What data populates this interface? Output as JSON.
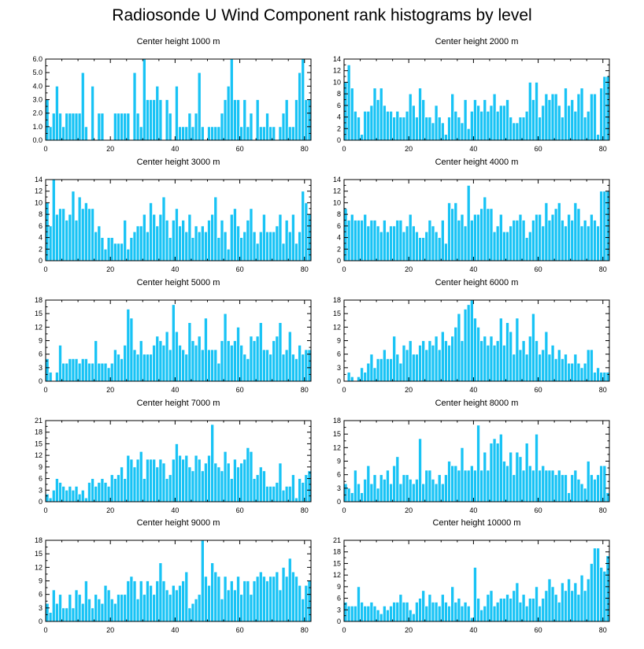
{
  "page_title": "Radiosonde U Wind Component rank histograms by level",
  "colors": {
    "bar": "#18C3F5",
    "bar_edge": "#ffffff",
    "axis": "#000000"
  },
  "chart_data": [
    {
      "type": "bar",
      "title": "Center height 1000 m",
      "xlim": [
        0,
        82
      ],
      "ylim": [
        0,
        6
      ],
      "xticks": [
        0,
        20,
        40,
        60,
        80
      ],
      "yticks": [
        0,
        1,
        2,
        3,
        4,
        5,
        6
      ],
      "ytick_labels": [
        "0.0",
        "1.0",
        "2.0",
        "3.0",
        "4.0",
        "5.0",
        "6.0"
      ],
      "values": [
        3,
        1,
        2,
        4,
        2,
        1,
        2,
        2,
        2,
        2,
        2,
        5,
        1,
        0,
        4,
        0,
        2,
        2,
        0,
        0,
        0,
        2,
        2,
        2,
        2,
        2,
        0,
        5,
        2,
        1,
        6,
        3,
        3,
        3,
        4,
        3,
        0,
        3,
        2,
        0,
        4,
        1,
        1,
        1,
        2,
        1,
        2,
        5,
        1,
        0,
        1,
        1,
        1,
        1,
        2,
        3,
        4,
        6,
        3,
        3,
        1,
        3,
        1,
        2,
        0,
        3,
        1,
        1,
        2,
        1,
        1,
        0,
        1,
        2,
        3,
        1,
        1,
        3,
        5,
        6,
        3,
        3
      ]
    },
    {
      "type": "bar",
      "title": "Center height 2000 m",
      "xlim": [
        0,
        82
      ],
      "ylim": [
        0,
        14
      ],
      "xticks": [
        0,
        20,
        40,
        60,
        80
      ],
      "yticks": [
        0,
        2,
        4,
        6,
        8,
        10,
        12,
        14
      ],
      "values": [
        10,
        13,
        9,
        5,
        4,
        1,
        5,
        5,
        6,
        9,
        7,
        9,
        6,
        5,
        5,
        4,
        5,
        4,
        4,
        5,
        8,
        6,
        4,
        9,
        7,
        4,
        4,
        3,
        6,
        4,
        3,
        1,
        4,
        8,
        5,
        4,
        3,
        7,
        2,
        5,
        7,
        6,
        5,
        7,
        5,
        6,
        8,
        5,
        6,
        6,
        7,
        4,
        3,
        3,
        4,
        4,
        5,
        10,
        7,
        10,
        4,
        6,
        8,
        7,
        8,
        8,
        6,
        4,
        9,
        6,
        7,
        5,
        8,
        9,
        4,
        5,
        8,
        8,
        1,
        9,
        11,
        11
      ]
    },
    {
      "type": "bar",
      "title": "Center height 3000 m",
      "xlim": [
        0,
        82
      ],
      "ylim": [
        0,
        14
      ],
      "xticks": [
        0,
        20,
        40,
        60,
        80
      ],
      "yticks": [
        0,
        2,
        4,
        6,
        8,
        10,
        12,
        14
      ],
      "values": [
        10,
        6,
        14,
        8,
        9,
        9,
        7,
        8,
        12,
        7,
        11,
        9,
        10,
        9,
        9,
        5,
        6,
        4,
        2,
        4,
        4,
        3,
        3,
        3,
        7,
        2,
        4,
        5,
        6,
        6,
        8,
        5,
        10,
        8,
        6,
        8,
        11,
        7,
        4,
        7,
        9,
        6,
        7,
        5,
        8,
        4,
        6,
        5,
        6,
        5,
        7,
        8,
        11,
        4,
        7,
        5,
        2,
        8,
        9,
        6,
        4,
        5,
        7,
        9,
        5,
        3,
        5,
        8,
        5,
        5,
        5,
        6,
        8,
        3,
        7,
        5,
        8,
        3,
        5,
        12,
        10,
        8
      ]
    },
    {
      "type": "bar",
      "title": "Center height 4000 m",
      "xlim": [
        0,
        82
      ],
      "ylim": [
        0,
        14
      ],
      "xticks": [
        0,
        20,
        40,
        60,
        80
      ],
      "yticks": [
        0,
        2,
        4,
        6,
        8,
        10,
        12,
        14
      ],
      "values": [
        9,
        7,
        8,
        7,
        7,
        7,
        8,
        6,
        7,
        7,
        6,
        5,
        7,
        5,
        6,
        6,
        7,
        7,
        5,
        6,
        8,
        6,
        5,
        4,
        4,
        5,
        7,
        6,
        5,
        4,
        7,
        3,
        10,
        9,
        10,
        7,
        8,
        6,
        13,
        7,
        8,
        8,
        9,
        11,
        9,
        9,
        5,
        6,
        8,
        5,
        5,
        6,
        7,
        7,
        8,
        7,
        4,
        5,
        7,
        8,
        8,
        6,
        10,
        7,
        8,
        9,
        10,
        7,
        6,
        8,
        7,
        10,
        9,
        6,
        7,
        6,
        8,
        7,
        6,
        12,
        12,
        12
      ]
    },
    {
      "type": "bar",
      "title": "Center height 5000 m",
      "xlim": [
        0,
        82
      ],
      "ylim": [
        0,
        18
      ],
      "xticks": [
        0,
        20,
        40,
        60,
        80
      ],
      "yticks": [
        0,
        3,
        6,
        9,
        12,
        15,
        18
      ],
      "values": [
        5,
        2,
        0,
        2,
        8,
        4,
        4,
        5,
        5,
        5,
        4,
        5,
        5,
        4,
        4,
        9,
        4,
        4,
        4,
        3,
        4,
        7,
        6,
        5,
        8,
        16,
        14,
        7,
        6,
        9,
        6,
        6,
        6,
        8,
        10,
        9,
        8,
        11,
        7,
        17,
        11,
        8,
        7,
        6,
        13,
        9,
        8,
        10,
        7,
        14,
        7,
        7,
        7,
        4,
        9,
        15,
        9,
        8,
        9,
        12,
        8,
        6,
        5,
        10,
        9,
        10,
        13,
        7,
        7,
        6,
        9,
        10,
        13,
        6,
        7,
        11,
        6,
        5,
        8,
        6,
        7,
        7
      ]
    },
    {
      "type": "bar",
      "title": "Center height 6000 m",
      "xlim": [
        0,
        82
      ],
      "ylim": [
        0,
        18
      ],
      "xticks": [
        0,
        20,
        40,
        60,
        80
      ],
      "yticks": [
        0,
        3,
        6,
        9,
        12,
        15,
        18
      ],
      "values": [
        0,
        2,
        1,
        0,
        1,
        3,
        2,
        4,
        6,
        3,
        5,
        5,
        7,
        5,
        5,
        10,
        6,
        4,
        8,
        7,
        9,
        6,
        6,
        8,
        9,
        7,
        9,
        8,
        10,
        7,
        11,
        9,
        8,
        10,
        12,
        15,
        9,
        16,
        17,
        18,
        14,
        12,
        9,
        10,
        8,
        10,
        8,
        9,
        14,
        8,
        13,
        11,
        6,
        14,
        7,
        9,
        6,
        10,
        15,
        9,
        6,
        7,
        11,
        6,
        8,
        5,
        7,
        5,
        6,
        4,
        4,
        6,
        4,
        3,
        4,
        7,
        7,
        2,
        3,
        2,
        2,
        2
      ]
    },
    {
      "type": "bar",
      "title": "Center height 7000 m",
      "xlim": [
        0,
        82
      ],
      "ylim": [
        0,
        21
      ],
      "xticks": [
        0,
        20,
        40,
        60,
        80
      ],
      "yticks": [
        0,
        3,
        6,
        9,
        12,
        15,
        18,
        21
      ],
      "values": [
        2,
        1,
        3,
        6,
        5,
        4,
        3,
        4,
        3,
        4,
        2,
        3,
        1,
        5,
        6,
        4,
        5,
        6,
        5,
        4,
        7,
        6,
        7,
        9,
        6,
        12,
        11,
        9,
        11,
        13,
        6,
        11,
        11,
        11,
        9,
        11,
        10,
        6,
        7,
        11,
        15,
        12,
        11,
        12,
        9,
        8,
        12,
        11,
        8,
        10,
        12,
        20,
        10,
        9,
        8,
        13,
        10,
        6,
        11,
        9,
        10,
        11,
        14,
        13,
        6,
        7,
        9,
        8,
        4,
        4,
        4,
        5,
        10,
        3,
        4,
        4,
        7,
        1,
        6,
        5,
        7,
        8
      ]
    },
    {
      "type": "bar",
      "title": "Center height 8000 m",
      "xlim": [
        0,
        82
      ],
      "ylim": [
        0,
        18
      ],
      "xticks": [
        0,
        20,
        40,
        60,
        80
      ],
      "yticks": [
        0,
        3,
        6,
        9,
        12,
        15,
        18
      ],
      "values": [
        4,
        3,
        2,
        7,
        4,
        2,
        5,
        8,
        4,
        6,
        3,
        6,
        5,
        7,
        4,
        8,
        10,
        4,
        6,
        6,
        5,
        4,
        5,
        14,
        4,
        7,
        7,
        5,
        4,
        6,
        4,
        6,
        9,
        8,
        8,
        7,
        12,
        7,
        7,
        8,
        7,
        17,
        7,
        11,
        7,
        13,
        14,
        13,
        15,
        9,
        8,
        11,
        6,
        11,
        10,
        7,
        13,
        8,
        7,
        15,
        7,
        8,
        7,
        7,
        7,
        6,
        7,
        6,
        6,
        2,
        6,
        7,
        5,
        4,
        3,
        9,
        6,
        5,
        6,
        8,
        8,
        2
      ]
    },
    {
      "type": "bar",
      "title": "Center height 9000 m",
      "xlim": [
        0,
        82
      ],
      "ylim": [
        0,
        18
      ],
      "xticks": [
        0,
        20,
        40,
        60,
        80
      ],
      "yticks": [
        0,
        3,
        6,
        9,
        12,
        15,
        18
      ],
      "values": [
        4,
        2,
        7,
        4,
        6,
        3,
        3,
        6,
        3,
        7,
        6,
        4,
        9,
        5,
        3,
        6,
        5,
        4,
        8,
        7,
        5,
        4,
        6,
        6,
        6,
        9,
        10,
        9,
        5,
        9,
        6,
        9,
        8,
        6,
        9,
        13,
        9,
        7,
        6,
        8,
        7,
        8,
        9,
        11,
        3,
        4,
        5,
        6,
        18,
        10,
        8,
        13,
        11,
        10,
        5,
        10,
        7,
        9,
        7,
        10,
        6,
        9,
        9,
        6,
        9,
        10,
        11,
        10,
        9,
        10,
        10,
        11,
        7,
        12,
        10,
        14,
        11,
        10,
        8,
        5,
        8,
        9
      ]
    },
    {
      "type": "bar",
      "title": "Center height 10000 m",
      "xlim": [
        0,
        82
      ],
      "ylim": [
        0,
        21
      ],
      "xticks": [
        0,
        20,
        40,
        60,
        80
      ],
      "yticks": [
        0,
        3,
        6,
        9,
        12,
        15,
        18,
        21
      ],
      "values": [
        5,
        4,
        4,
        4,
        9,
        5,
        4,
        4,
        5,
        4,
        3,
        2,
        4,
        3,
        4,
        5,
        5,
        7,
        5,
        5,
        3,
        2,
        5,
        6,
        8,
        4,
        7,
        5,
        5,
        4,
        7,
        5,
        4,
        9,
        5,
        6,
        4,
        5,
        4,
        1,
        14,
        6,
        3,
        4,
        7,
        8,
        4,
        5,
        6,
        6,
        7,
        6,
        8,
        10,
        5,
        7,
        4,
        6,
        6,
        9,
        4,
        6,
        8,
        11,
        9,
        7,
        5,
        10,
        8,
        11,
        8,
        10,
        7,
        12,
        8,
        11,
        15,
        19,
        19,
        14,
        13,
        17
      ]
    }
  ]
}
